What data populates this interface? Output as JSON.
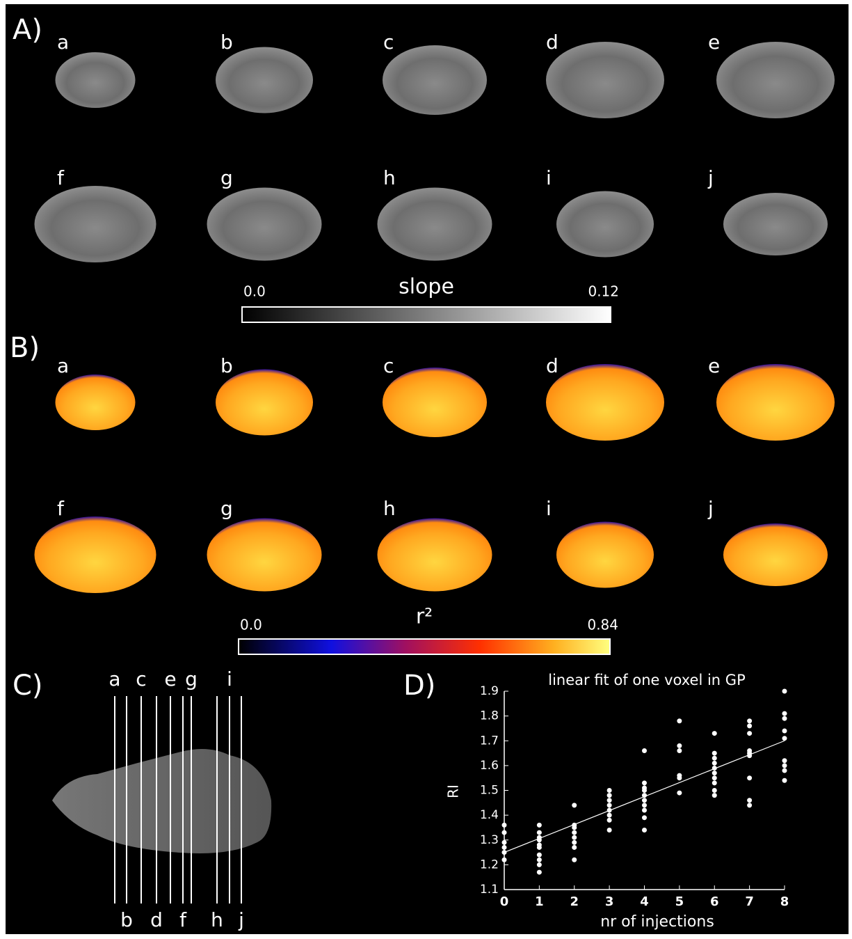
{
  "panel_a": {
    "label": "A)",
    "slices": [
      "a",
      "b",
      "c",
      "d",
      "e",
      "f",
      "g",
      "h",
      "i",
      "j"
    ],
    "colorbar": {
      "title": "slope",
      "min": "0.0",
      "max": "0.12"
    }
  },
  "panel_b": {
    "label": "B)",
    "slices": [
      "a",
      "b",
      "c",
      "d",
      "e",
      "f",
      "g",
      "h",
      "i",
      "j"
    ],
    "colorbar": {
      "title": "r²",
      "min": "0.0",
      "max": "0.84"
    }
  },
  "panel_c": {
    "label": "C)",
    "lines": [
      "a",
      "b",
      "c",
      "d",
      "e",
      "f",
      "g",
      "h",
      "i",
      "j"
    ]
  },
  "panel_d": {
    "label": "D)"
  },
  "chart_data": {
    "type": "scatter",
    "title": "linear fit of one voxel in GP",
    "x_label": "nr  of injections",
    "y_label": "RI",
    "x": [
      0,
      0,
      0,
      0,
      0,
      0,
      1,
      1,
      1,
      1,
      1,
      1,
      1,
      1,
      1,
      1,
      2,
      2,
      2,
      2,
      2,
      2,
      2,
      2,
      3,
      3,
      3,
      3,
      3,
      3,
      3,
      3,
      4,
      4,
      4,
      4,
      4,
      4,
      4,
      4,
      4,
      4,
      5,
      5,
      5,
      5,
      5,
      5,
      6,
      6,
      6,
      6,
      6,
      6,
      6,
      6,
      6,
      6,
      7,
      7,
      7,
      7,
      7,
      7,
      7,
      7,
      7,
      8,
      8,
      8,
      8,
      8,
      8,
      8,
      8,
      8
    ],
    "values": [
      1.36,
      1.33,
      1.29,
      1.27,
      1.25,
      1.22,
      1.36,
      1.33,
      1.31,
      1.3,
      1.28,
      1.27,
      1.24,
      1.22,
      1.2,
      1.17,
      1.44,
      1.36,
      1.35,
      1.33,
      1.31,
      1.29,
      1.27,
      1.22,
      1.5,
      1.48,
      1.46,
      1.44,
      1.42,
      1.4,
      1.38,
      1.34,
      1.66,
      1.53,
      1.51,
      1.5,
      1.48,
      1.46,
      1.44,
      1.42,
      1.39,
      1.34,
      1.78,
      1.68,
      1.66,
      1.56,
      1.55,
      1.49,
      1.73,
      1.65,
      1.63,
      1.61,
      1.59,
      1.57,
      1.55,
      1.53,
      1.5,
      1.48,
      1.78,
      1.76,
      1.73,
      1.66,
      1.65,
      1.64,
      1.55,
      1.46,
      1.44,
      1.9,
      1.81,
      1.79,
      1.74,
      1.71,
      1.62,
      1.6,
      1.58,
      1.54
    ],
    "fit": {
      "x": [
        0,
        8
      ],
      "values": [
        1.25,
        1.7
      ]
    },
    "color": "#ffffff",
    "xlim": [
      0,
      8
    ],
    "ylim": [
      1.1,
      1.9
    ],
    "xticks": [
      0,
      1,
      2,
      3,
      4,
      5,
      6,
      7,
      8
    ],
    "yticks": [
      1.1,
      1.2,
      1.3,
      1.4,
      1.5,
      1.6,
      1.7,
      1.8,
      1.9
    ]
  }
}
